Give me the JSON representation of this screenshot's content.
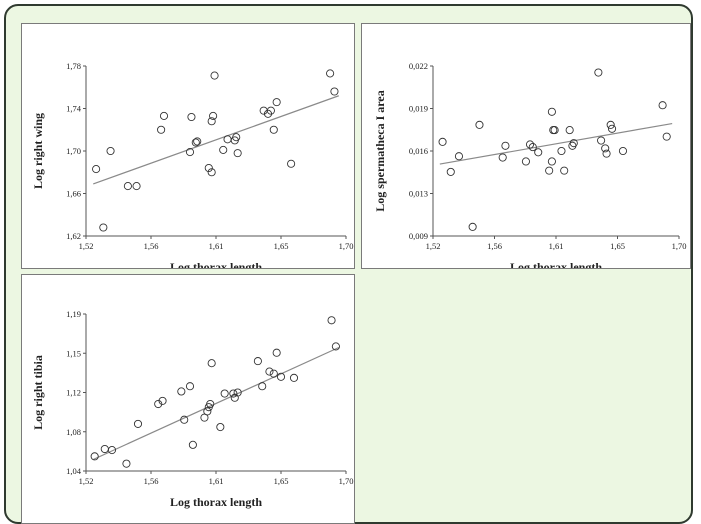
{
  "chart_data": [
    {
      "type": "scatter",
      "xlabel": "Log thorax length",
      "ylabel": "Log right wing",
      "xlim": [
        1.52,
        1.7
      ],
      "ylim": [
        1.62,
        1.78
      ],
      "xticks": [
        "1,52",
        "1,56",
        "1,61",
        "1,65",
        "1,70"
      ],
      "yticks": [
        "1,62",
        "1,66",
        "1,70",
        "1,74",
        "1,78"
      ],
      "fit_line": [
        [
          1.525,
          1.669
        ],
        [
          1.695,
          1.752
        ]
      ],
      "points": [
        [
          1.527,
          1.683
        ],
        [
          1.532,
          1.628
        ],
        [
          1.537,
          1.7
        ],
        [
          1.549,
          1.667
        ],
        [
          1.555,
          1.667
        ],
        [
          1.572,
          1.72
        ],
        [
          1.574,
          1.733
        ],
        [
          1.592,
          1.699
        ],
        [
          1.593,
          1.732
        ],
        [
          1.596,
          1.708
        ],
        [
          1.597,
          1.709
        ],
        [
          1.605,
          1.684
        ],
        [
          1.607,
          1.68
        ],
        [
          1.607,
          1.728
        ],
        [
          1.608,
          1.733
        ],
        [
          1.609,
          1.771
        ],
        [
          1.615,
          1.701
        ],
        [
          1.618,
          1.711
        ],
        [
          1.623,
          1.71
        ],
        [
          1.624,
          1.713
        ],
        [
          1.625,
          1.698
        ],
        [
          1.643,
          1.738
        ],
        [
          1.646,
          1.735
        ],
        [
          1.648,
          1.738
        ],
        [
          1.65,
          1.72
        ],
        [
          1.652,
          1.746
        ],
        [
          1.662,
          1.688
        ],
        [
          1.689,
          1.773
        ],
        [
          1.692,
          1.756
        ]
      ]
    },
    {
      "type": "scatter",
      "xlabel": "Log thorax length",
      "ylabel": "Log spermatheca I area",
      "xlim": [
        1.52,
        1.7
      ],
      "ylim": [
        0.009,
        0.022
      ],
      "xticks": [
        "1,52",
        "1,56",
        "1,61",
        "1,65",
        "1,70"
      ],
      "yticks": [
        "0,009",
        "0,013",
        "0,016",
        "0,019",
        "0,022"
      ],
      "fit_line": [
        [
          1.525,
          0.0145
        ],
        [
          1.695,
          0.0176
        ]
      ],
      "points": [
        [
          1.527,
          0.0162
        ],
        [
          1.533,
          0.0139
        ],
        [
          1.539,
          0.0151
        ],
        [
          1.549,
          0.0097
        ],
        [
          1.554,
          0.0175
        ],
        [
          1.571,
          0.015
        ],
        [
          1.573,
          0.0159
        ],
        [
          1.588,
          0.0147
        ],
        [
          1.591,
          0.016
        ],
        [
          1.593,
          0.0158
        ],
        [
          1.597,
          0.0154
        ],
        [
          1.605,
          0.014
        ],
        [
          1.607,
          0.0147
        ],
        [
          1.607,
          0.0185
        ],
        [
          1.608,
          0.0171
        ],
        [
          1.609,
          0.0171
        ],
        [
          1.614,
          0.0155
        ],
        [
          1.616,
          0.014
        ],
        [
          1.62,
          0.0171
        ],
        [
          1.622,
          0.0159
        ],
        [
          1.623,
          0.0161
        ],
        [
          1.641,
          0.0215
        ],
        [
          1.643,
          0.0163
        ],
        [
          1.646,
          0.0157
        ],
        [
          1.647,
          0.0153
        ],
        [
          1.65,
          0.0175
        ],
        [
          1.651,
          0.0172
        ],
        [
          1.659,
          0.0155
        ],
        [
          1.688,
          0.019
        ],
        [
          1.691,
          0.0166
        ]
      ]
    },
    {
      "type": "scatter",
      "xlabel": "Log thorax length",
      "ylabel": "Log right tibia",
      "xlim": [
        1.52,
        1.7
      ],
      "ylim": [
        1.04,
        1.19
      ],
      "xticks": [
        "1,52",
        "1,56",
        "1,61",
        "1,65",
        "1,70"
      ],
      "yticks": [
        "1,04",
        "1,08",
        "1,12",
        "1,15",
        "1,19"
      ],
      "fit_line": [
        [
          1.525,
          1.051
        ],
        [
          1.695,
          1.158
        ]
      ],
      "points": [
        [
          1.526,
          1.054
        ],
        [
          1.533,
          1.061
        ],
        [
          1.538,
          1.06
        ],
        [
          1.548,
          1.047
        ],
        [
          1.556,
          1.085
        ],
        [
          1.57,
          1.104
        ],
        [
          1.573,
          1.107
        ],
        [
          1.586,
          1.116
        ],
        [
          1.588,
          1.089
        ],
        [
          1.592,
          1.121
        ],
        [
          1.594,
          1.065
        ],
        [
          1.602,
          1.091
        ],
        [
          1.604,
          1.097
        ],
        [
          1.605,
          1.101
        ],
        [
          1.606,
          1.104
        ],
        [
          1.607,
          1.143
        ],
        [
          1.613,
          1.082
        ],
        [
          1.616,
          1.114
        ],
        [
          1.622,
          1.114
        ],
        [
          1.623,
          1.11
        ],
        [
          1.625,
          1.115
        ],
        [
          1.639,
          1.145
        ],
        [
          1.642,
          1.121
        ],
        [
          1.647,
          1.135
        ],
        [
          1.65,
          1.133
        ],
        [
          1.652,
          1.153
        ],
        [
          1.655,
          1.13
        ],
        [
          1.664,
          1.129
        ],
        [
          1.69,
          1.184
        ],
        [
          1.693,
          1.159
        ]
      ]
    }
  ]
}
